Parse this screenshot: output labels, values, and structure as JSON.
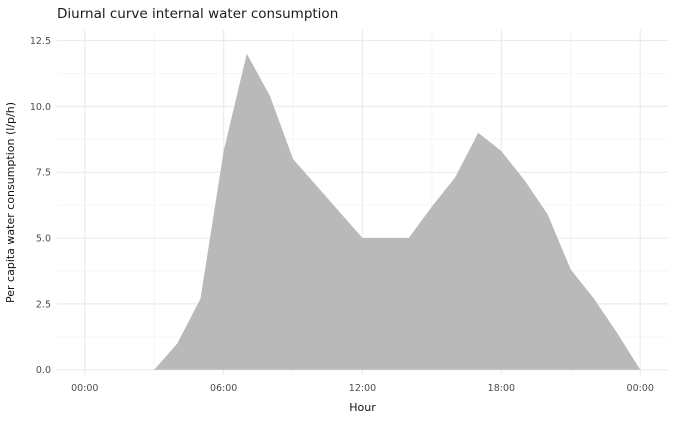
{
  "title": "Diurnal curve internal water consumption",
  "chart_data": {
    "type": "area",
    "title": "Diurnal curve internal water consumption",
    "xlabel": "Hour",
    "ylabel": "Per capita water consumption (l/p/h)",
    "x": [
      0,
      1,
      2,
      3,
      4,
      5,
      6,
      7,
      8,
      9,
      10,
      11,
      12,
      13,
      14,
      15,
      16,
      17,
      18,
      19,
      20,
      21,
      22,
      23,
      24
    ],
    "values": [
      0,
      0,
      0,
      0,
      1.0,
      2.7,
      8.3,
      12.0,
      10.4,
      8.0,
      7.0,
      6.0,
      5.0,
      5.0,
      5.0,
      6.2,
      7.3,
      9.0,
      8.3,
      7.2,
      5.9,
      3.8,
      2.7,
      1.4,
      0
    ],
    "x_ticks": [
      {
        "value": 0,
        "label": "00:00"
      },
      {
        "value": 6,
        "label": "06:00"
      },
      {
        "value": 12,
        "label": "12:00"
      },
      {
        "value": 18,
        "label": "18:00"
      },
      {
        "value": 24,
        "label": "00:00"
      }
    ],
    "y_ticks": [
      {
        "value": 0,
        "label": "0.0"
      },
      {
        "value": 2.5,
        "label": "2.5"
      },
      {
        "value": 5,
        "label": "5.0"
      },
      {
        "value": 7.5,
        "label": "7.5"
      },
      {
        "value": 10,
        "label": "10.0"
      },
      {
        "value": 12.5,
        "label": "12.5"
      }
    ],
    "xlim": [
      -1.2,
      25.2
    ],
    "ylim": [
      -0.2,
      12.9
    ],
    "fill_color": "#b9b9b9",
    "grid_major_color": "#ebebeb",
    "grid_minor_color": "#f6f6f6",
    "legend": "none",
    "grid": "on"
  }
}
